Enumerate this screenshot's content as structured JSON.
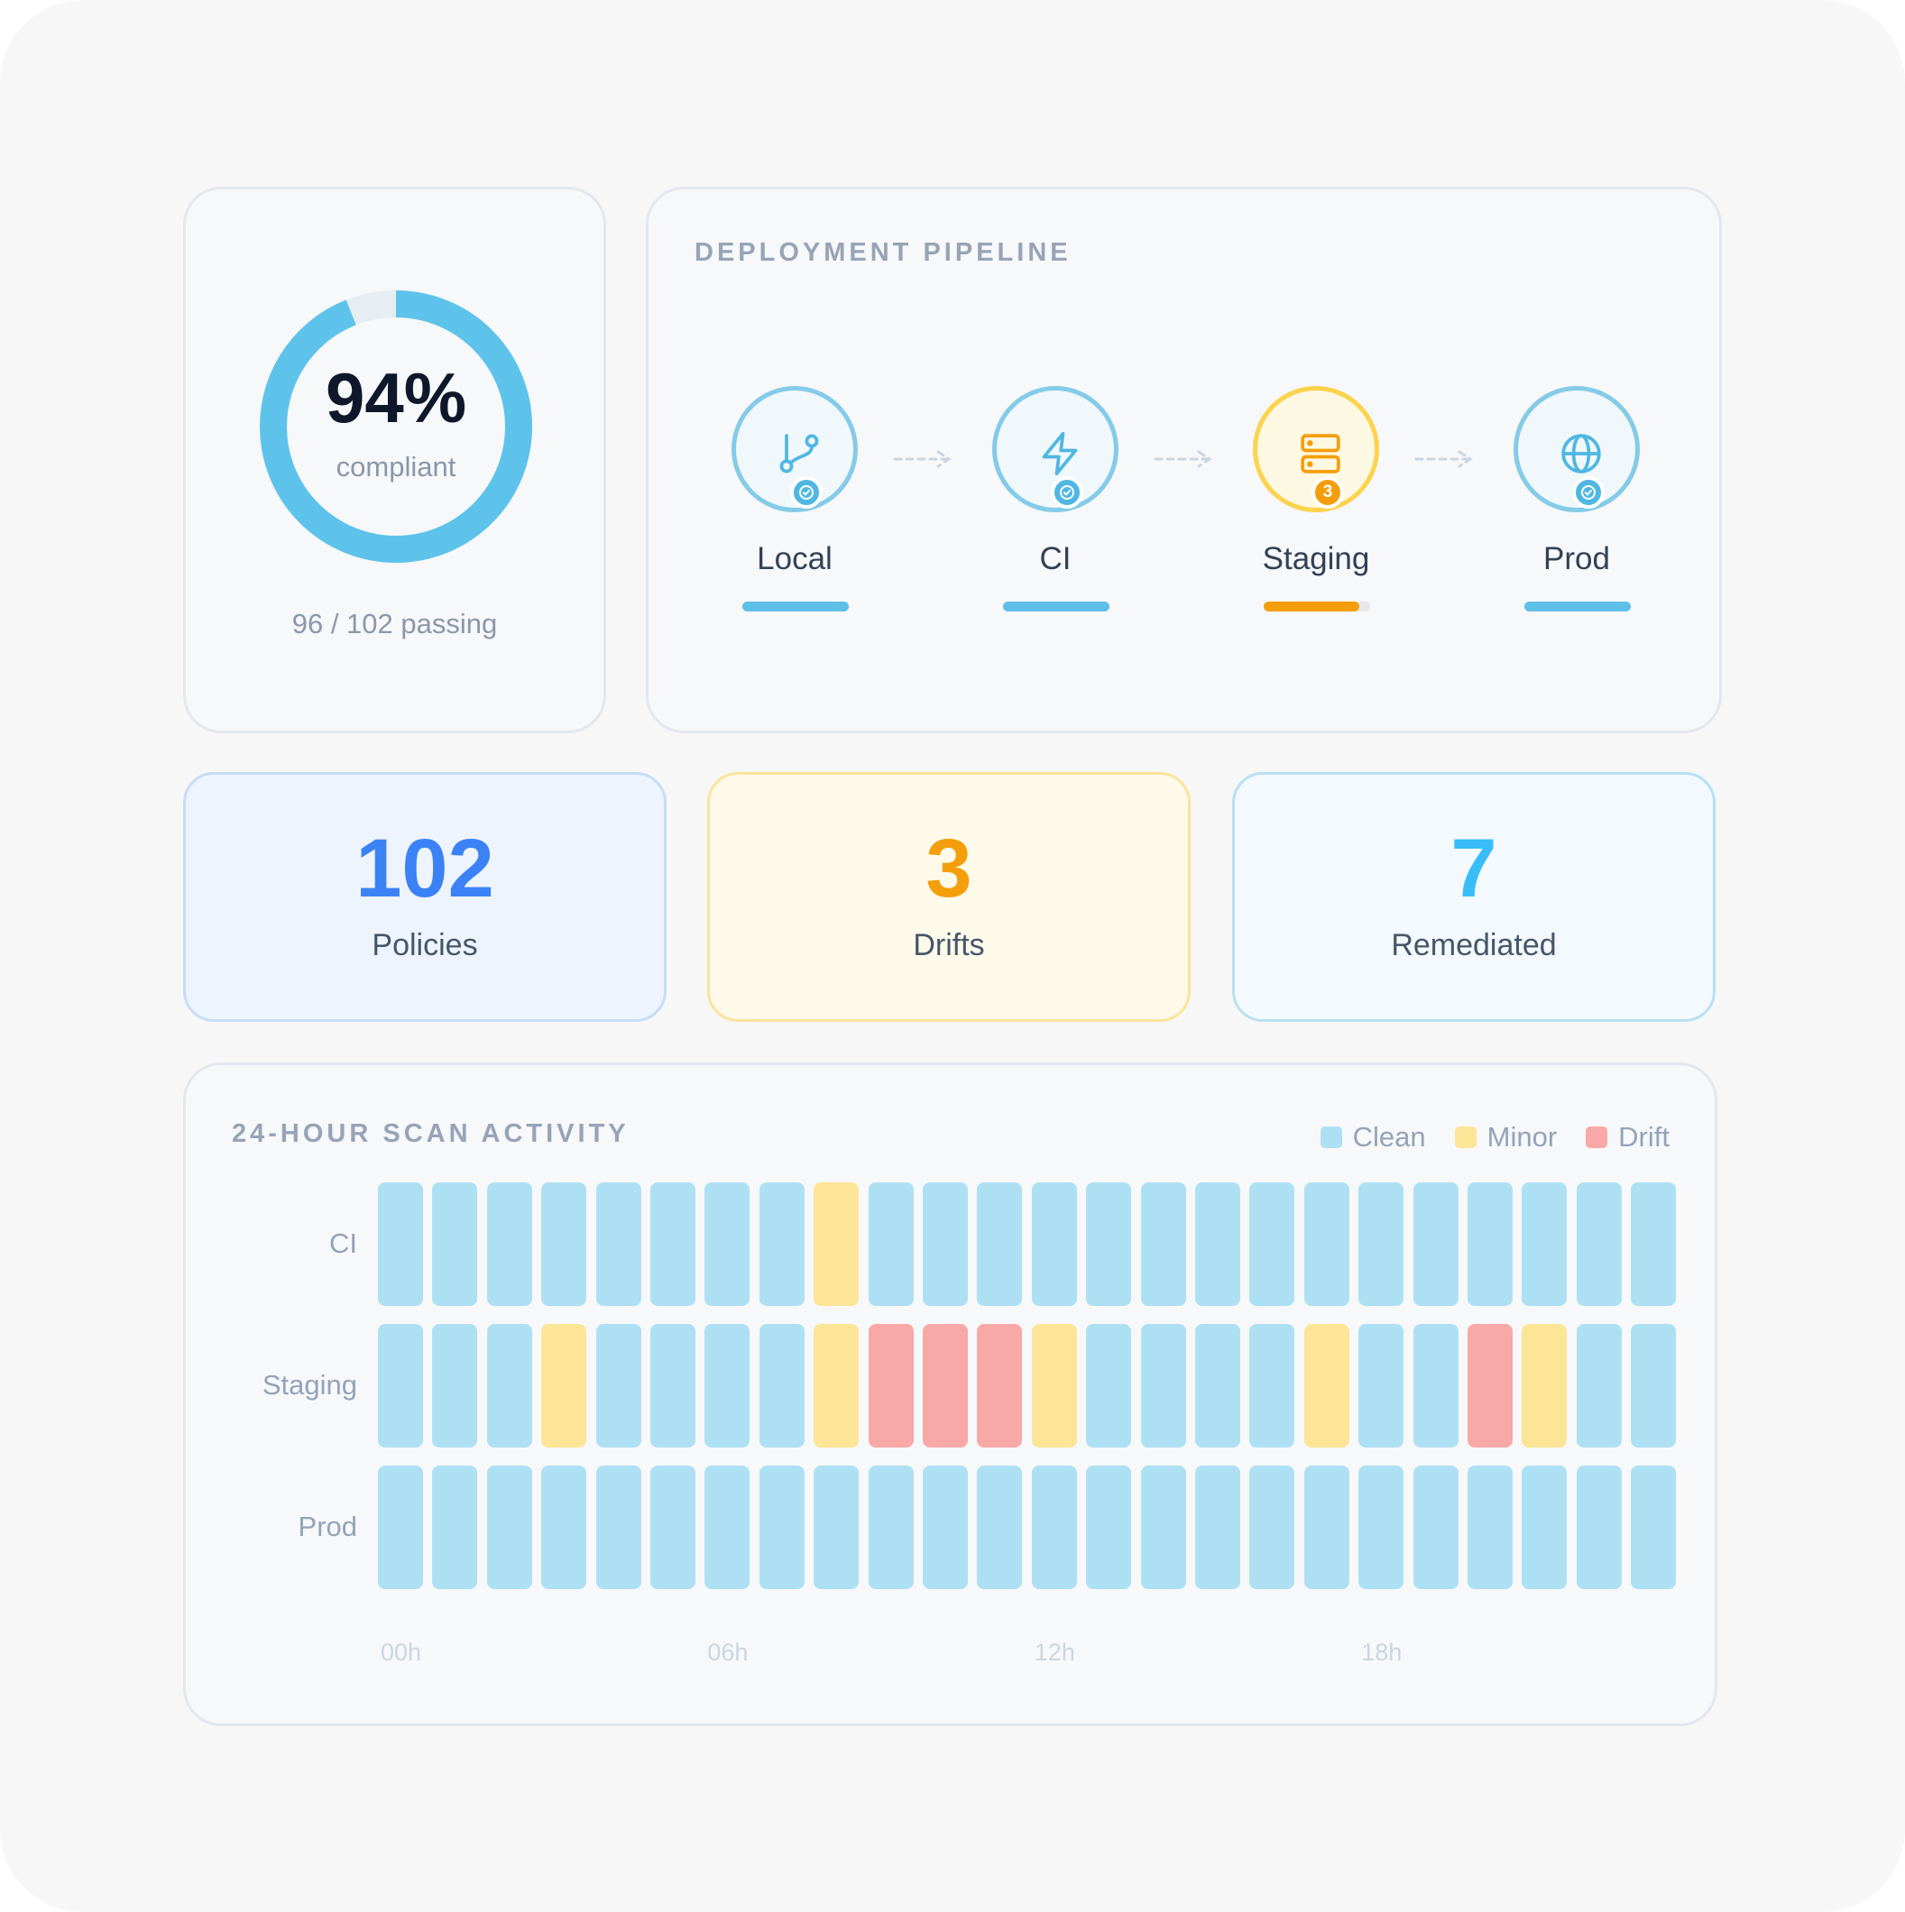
{
  "compliance": {
    "percent_label": "94%",
    "percent_value": 0.94,
    "subtitle": "compliant",
    "passing_label": "96 / 102 passing"
  },
  "pipeline": {
    "title": "DEPLOYMENT PIPELINE",
    "stages": [
      {
        "name": "Local",
        "icon": "git-branch-icon",
        "status": "ok",
        "badge": "",
        "progress": 1.0
      },
      {
        "name": "CI",
        "icon": "lightning-icon",
        "status": "ok",
        "badge": "",
        "progress": 1.0
      },
      {
        "name": "Staging",
        "icon": "server-icon",
        "status": "warn",
        "badge": "3",
        "progress": 0.9
      },
      {
        "name": "Prod",
        "icon": "globe-icon",
        "status": "ok",
        "badge": "",
        "progress": 1.0
      }
    ]
  },
  "metrics": {
    "policies": {
      "value": "102",
      "label": "Policies",
      "color": "#3b82f6"
    },
    "drifts": {
      "value": "3",
      "label": "Drifts",
      "color": "#f59e0b"
    },
    "remediated": {
      "value": "7",
      "label": "Remediated",
      "color": "#38bdf8"
    }
  },
  "activity": {
    "title": "24-HOUR SCAN ACTIVITY",
    "legend": [
      {
        "label": "Clean",
        "key": "clean",
        "color": "#aee0f4"
      },
      {
        "label": "Minor",
        "key": "minor",
        "color": "#fce596"
      },
      {
        "label": "Drift",
        "key": "drift",
        "color": "#f9a8a8"
      }
    ],
    "rows": [
      {
        "label": "CI",
        "cells": [
          "clean",
          "clean",
          "clean",
          "clean",
          "clean",
          "clean",
          "clean",
          "clean",
          "minor",
          "clean",
          "clean",
          "clean",
          "clean",
          "clean",
          "clean",
          "clean",
          "clean",
          "clean",
          "clean",
          "clean",
          "clean",
          "clean",
          "clean",
          "clean"
        ]
      },
      {
        "label": "Staging",
        "cells": [
          "clean",
          "clean",
          "clean",
          "minor",
          "clean",
          "clean",
          "clean",
          "clean",
          "minor",
          "drift",
          "drift",
          "drift",
          "minor",
          "clean",
          "clean",
          "clean",
          "clean",
          "minor",
          "clean",
          "clean",
          "drift",
          "minor",
          "clean",
          "clean"
        ]
      },
      {
        "label": "Prod",
        "cells": [
          "clean",
          "clean",
          "clean",
          "clean",
          "clean",
          "clean",
          "clean",
          "clean",
          "clean",
          "clean",
          "clean",
          "clean",
          "clean",
          "clean",
          "clean",
          "clean",
          "clean",
          "clean",
          "clean",
          "clean",
          "clean",
          "clean",
          "clean",
          "clean"
        ]
      }
    ],
    "hour_labels": [
      "00h",
      "06h",
      "12h",
      "18h"
    ]
  },
  "colors": {
    "accent": "#5ec0e8",
    "warning": "#f59e0b"
  }
}
